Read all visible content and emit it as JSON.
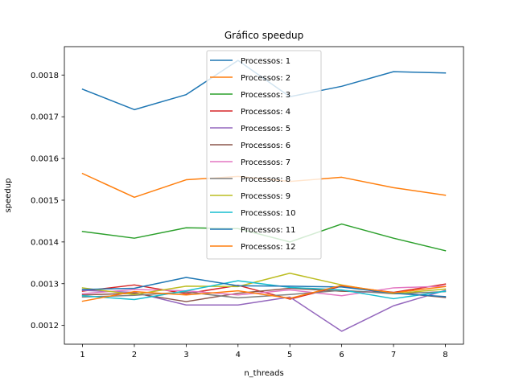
{
  "chart_data": {
    "type": "line",
    "title": "Gráfico speedup",
    "xlabel": "n_threads",
    "ylabel": "speedup",
    "x": [
      1,
      2,
      3,
      4,
      5,
      6,
      7,
      8
    ],
    "xlim": [
      0.65,
      8.35
    ],
    "ylim": [
      0.001155,
      0.001868
    ],
    "xticks": [
      "1",
      "2",
      "3",
      "4",
      "5",
      "6",
      "7",
      "8"
    ],
    "yticks": [
      {
        "value": 0.0012,
        "label": "0.0012"
      },
      {
        "value": 0.0013,
        "label": "0.0013"
      },
      {
        "value": 0.0014,
        "label": "0.0014"
      },
      {
        "value": 0.0015,
        "label": "0.0015"
      },
      {
        "value": 0.0016,
        "label": "0.0016"
      },
      {
        "value": 0.0017,
        "label": "0.0017"
      },
      {
        "value": 0.0018,
        "label": "0.0018"
      }
    ],
    "grid": false,
    "legend_position": "top-center",
    "series": [
      {
        "name": "Processos: 1",
        "color": "#1f77b4",
        "values": [
          0.001766,
          0.001717,
          0.001753,
          0.001835,
          0.001748,
          0.001773,
          0.001808,
          0.001805
        ]
      },
      {
        "name": "Processos: 2",
        "color": "#ff7f0e",
        "values": [
          0.001564,
          0.001507,
          0.001549,
          0.001557,
          0.001545,
          0.001555,
          0.00153,
          0.001512
        ]
      },
      {
        "name": "Processos: 3",
        "color": "#2ca02c",
        "values": [
          0.001425,
          0.001409,
          0.001434,
          0.001432,
          0.0014,
          0.001443,
          0.001409,
          0.001379
        ]
      },
      {
        "name": "Processos: 4",
        "color": "#d62728",
        "values": [
          0.001282,
          0.001297,
          0.001276,
          0.001296,
          0.001263,
          0.001294,
          0.001279,
          0.001299
        ]
      },
      {
        "name": "Processos: 5",
        "color": "#9467bd",
        "values": [
          0.001284,
          0.001279,
          0.001249,
          0.001249,
          0.001268,
          0.001186,
          0.001247,
          0.001284
        ]
      },
      {
        "name": "Processos: 6",
        "color": "#8c564b",
        "values": [
          0.001273,
          0.001277,
          0.001257,
          0.001277,
          0.001289,
          0.001282,
          0.001279,
          0.001267
        ]
      },
      {
        "name": "Processos: 7",
        "color": "#e377c2",
        "values": [
          0.001276,
          0.001286,
          0.001283,
          0.001273,
          0.001285,
          0.001271,
          0.00129,
          0.001294
        ]
      },
      {
        "name": "Processos: 8",
        "color": "#7f7f7f",
        "values": [
          0.001268,
          0.001272,
          0.00128,
          0.001266,
          0.001274,
          0.001284,
          0.001276,
          0.001281
        ]
      },
      {
        "name": "Processos: 9",
        "color": "#bcbd22",
        "values": [
          0.00129,
          0.001274,
          0.001294,
          0.001293,
          0.001325,
          0.001297,
          0.001276,
          0.001287
        ]
      },
      {
        "name": "Processos: 10",
        "color": "#17becf",
        "values": [
          0.001271,
          0.001262,
          0.001283,
          0.001307,
          0.001291,
          0.001285,
          0.001264,
          0.001282
        ]
      },
      {
        "name": "Processos: 11",
        "color": "#1f77b4",
        "values": [
          0.001286,
          0.001289,
          0.001315,
          0.001295,
          0.001294,
          0.001292,
          0.001277,
          0.001269
        ]
      },
      {
        "name": "Processos: 12",
        "color": "#ff7f0e",
        "values": [
          0.001258,
          0.001281,
          0.001273,
          0.001283,
          0.001265,
          0.001296,
          0.001278,
          0.001293
        ]
      }
    ]
  }
}
